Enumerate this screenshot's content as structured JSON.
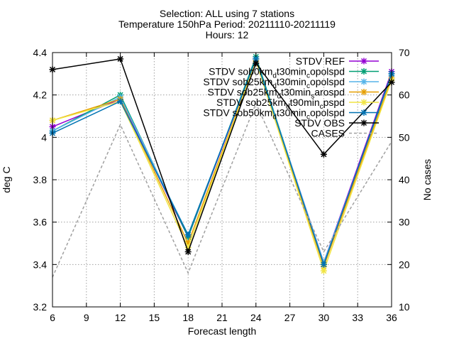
{
  "title": {
    "line1": "Selection: ALL using      7 stations",
    "line2": "Temperature 150hPa    Period: 20211110-20211119",
    "line3": "Hours: 12"
  },
  "chart_data": {
    "type": "line",
    "xlabel": "Forecast length",
    "ylabel": "deg C",
    "y2label": "No cases",
    "xlim": [
      6,
      36
    ],
    "ylim": [
      3.2,
      4.4
    ],
    "y2lim": [
      10,
      70
    ],
    "xticks": [
      6,
      9,
      12,
      15,
      18,
      21,
      24,
      27,
      30,
      33,
      36
    ],
    "yticks": [
      3.2,
      3.4,
      3.6,
      3.8,
      4.0,
      4.2,
      4.4
    ],
    "ytick_labels": [
      "3.2",
      "3.4",
      "3.6",
      "3.8",
      "4",
      "4.2",
      "4.4"
    ],
    "y2ticks": [
      10,
      20,
      30,
      40,
      50,
      60,
      70
    ],
    "grid": true,
    "legend_position": "top-right",
    "x": [
      6,
      12,
      18,
      24,
      30,
      36
    ],
    "series": [
      {
        "name": "STDV REF",
        "color": "#9400d3",
        "values": [
          4.05,
          4.18,
          3.53,
          4.37,
          3.41,
          4.31
        ],
        "axis": "y1"
      },
      {
        "name": "STDV sob0km_d t30min_c opolspd",
        "color": "#009e73",
        "values": [
          4.03,
          4.2,
          3.53,
          4.38,
          3.4,
          4.3
        ],
        "axis": "y1"
      },
      {
        "name": "STDV sob25km_d t30min_c opolspd",
        "color": "#56b4e9",
        "values": [
          4.03,
          4.19,
          3.54,
          4.37,
          3.41,
          4.29
        ],
        "axis": "y1"
      },
      {
        "name": "STDV sob25km_d t30min_s arospd",
        "color": "#e69f00",
        "values": [
          4.08,
          4.18,
          3.5,
          4.36,
          3.39,
          4.28
        ],
        "axis": "y1"
      },
      {
        "name": "STDV sob25km_d t90min_c pspd",
        "color": "#f0e442",
        "values": [
          4.08,
          4.17,
          3.48,
          4.36,
          3.37,
          4.27
        ],
        "axis": "y1"
      },
      {
        "name": "STDV sob50km_d t30min_c opolspd",
        "color": "#0072b2",
        "values": [
          4.02,
          4.17,
          3.54,
          4.37,
          3.4,
          4.3
        ],
        "axis": "y1"
      },
      {
        "name": "STDV OBS",
        "color": "#000000",
        "values": [
          4.32,
          4.37,
          3.46,
          4.35,
          3.92,
          4.26
        ],
        "axis": "y1"
      },
      {
        "name": "CASES",
        "color": "#a0a0a0",
        "values": [
          17,
          53,
          18,
          58,
          23,
          49
        ],
        "axis": "y2"
      }
    ]
  }
}
